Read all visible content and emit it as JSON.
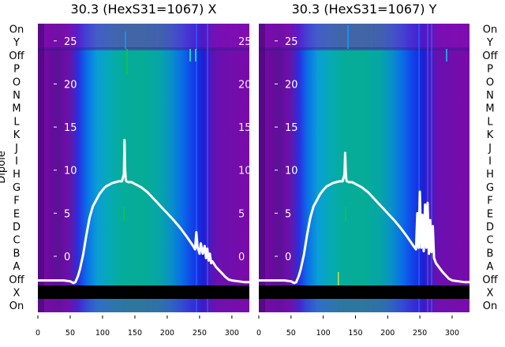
{
  "figure": {
    "ylabel": "Dipole",
    "dipole_labels": [
      "On",
      "Y",
      "Off",
      "P",
      "O",
      "N",
      "M",
      "L",
      "K",
      "J",
      "I",
      "H",
      "G",
      "F",
      "E",
      "D",
      "C",
      "B",
      "A",
      "Off",
      "X",
      "On"
    ]
  },
  "chart_data": [
    {
      "type": "heatmap",
      "title": "30.3 (HexS31=1067) X",
      "x_ticks": [
        0,
        50,
        100,
        150,
        200,
        250,
        300
      ],
      "xlim": [
        0,
        327
      ],
      "y_ticks": [
        0,
        5,
        10,
        15,
        20,
        25
      ],
      "ylim": [
        -6.5,
        27
      ],
      "series": [
        {
          "type": "line",
          "x": [
            0,
            40,
            50,
            55,
            58,
            62,
            65,
            70,
            75,
            80,
            85,
            90,
            95,
            100,
            105,
            110,
            115,
            120,
            125,
            130,
            133,
            134,
            135,
            136,
            137,
            140,
            145,
            150,
            155,
            160,
            170,
            180,
            190,
            200,
            210,
            220,
            230,
            240,
            243,
            245,
            247,
            249,
            250,
            252,
            255,
            258,
            260,
            262,
            264,
            266,
            268,
            270,
            275,
            280,
            285,
            290,
            295,
            300,
            310,
            320,
            327
          ],
          "y": [
            -2.8,
            -2.8,
            -2.9,
            -3.1,
            -3.0,
            -2.3,
            -1.5,
            0.2,
            2.5,
            4.5,
            5.8,
            6.5,
            7.2,
            7.7,
            8.1,
            8.3,
            8.5,
            8.6,
            8.7,
            8.7,
            9.5,
            13.5,
            10.0,
            8.8,
            8.7,
            8.6,
            8.6,
            8.4,
            8.2,
            8.0,
            7.4,
            6.6,
            5.8,
            5.0,
            4.2,
            3.3,
            2.3,
            1.2,
            0.8,
            2.8,
            1.0,
            0.6,
            0.3,
            1.5,
            0.3,
            1.2,
            -0.2,
            0.9,
            -0.5,
            0.3,
            -0.8,
            -0.6,
            -1.2,
            -1.6,
            -2.0,
            -2.4,
            -2.7,
            -2.8,
            -2.9,
            -3.0,
            -3.0
          ]
        }
      ]
    },
    {
      "type": "heatmap",
      "title": "30.3 (HexS31=1067) Y",
      "x_ticks": [
        0,
        50,
        100,
        150,
        200,
        250,
        300
      ],
      "xlim": [
        0,
        327
      ],
      "y_ticks": [
        0,
        5,
        10,
        15,
        20,
        25
      ],
      "ylim": [
        -6.5,
        27
      ],
      "series": [
        {
          "type": "line",
          "x": [
            0,
            40,
            50,
            55,
            58,
            62,
            65,
            70,
            75,
            80,
            85,
            90,
            95,
            100,
            105,
            110,
            115,
            120,
            125,
            130,
            133,
            134,
            135,
            136,
            137,
            140,
            145,
            150,
            155,
            160,
            170,
            180,
            190,
            200,
            210,
            220,
            230,
            240,
            244,
            246,
            248,
            250,
            252,
            254,
            256,
            258,
            260,
            262,
            264,
            266,
            268,
            270,
            272,
            275,
            280,
            285,
            290,
            295,
            300,
            310,
            320,
            327
          ],
          "y": [
            -2.8,
            -2.8,
            -2.9,
            -3.1,
            -3.0,
            -2.3,
            -1.5,
            0.2,
            2.5,
            4.5,
            5.8,
            6.5,
            7.2,
            7.7,
            8.1,
            8.3,
            8.5,
            8.6,
            8.7,
            8.7,
            9.5,
            12.0,
            9.8,
            8.8,
            8.7,
            8.6,
            8.6,
            8.4,
            8.2,
            8.0,
            7.4,
            6.6,
            5.8,
            5.0,
            4.2,
            3.3,
            2.3,
            1.2,
            0.8,
            5.0,
            1.0,
            7.5,
            1.0,
            4.8,
            0.6,
            6.0,
            1.0,
            6.2,
            0.3,
            4.2,
            0.5,
            3.5,
            -0.2,
            -0.8,
            -1.3,
            -1.8,
            -2.2,
            -2.6,
            -2.8,
            -2.9,
            -3.0,
            -3.0
          ]
        }
      ]
    }
  ]
}
